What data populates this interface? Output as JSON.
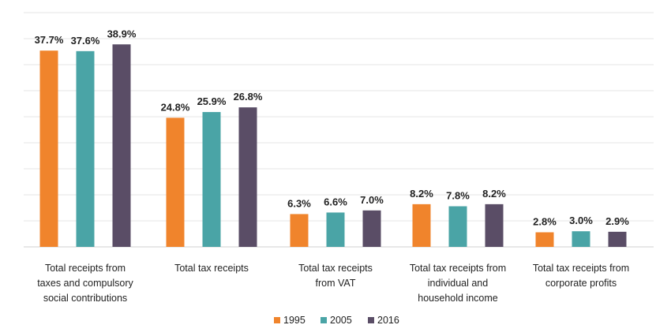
{
  "chart_data": {
    "type": "bar",
    "title": "",
    "xlabel": "",
    "ylabel": "",
    "ylim": [
      0,
      45
    ],
    "grid": true,
    "legend_position": "bottom-center",
    "categories": [
      [
        "Total receipts from",
        "taxes and compulsory",
        "social contributions"
      ],
      [
        "Total tax receipts"
      ],
      [
        "Total tax receipts",
        "from VAT"
      ],
      [
        "Total tax receipts from",
        "individual and",
        "household income"
      ],
      [
        "Total tax receipts from",
        "corporate profits"
      ]
    ],
    "series": [
      {
        "name": "1995",
        "color": "#f0842c",
        "values": [
          37.7,
          24.8,
          6.3,
          8.2,
          2.8
        ],
        "labels": [
          "37.7%",
          "24.8%",
          "6.3%",
          "8.2%",
          "2.8%"
        ]
      },
      {
        "name": "2005",
        "color": "#4aa4a6",
        "values": [
          37.6,
          25.9,
          6.6,
          7.8,
          3.0
        ],
        "labels": [
          "37.6%",
          "25.9%",
          "6.6%",
          "7.8%",
          "3.0%"
        ]
      },
      {
        "name": "2016",
        "color": "#5a4d66",
        "values": [
          38.9,
          26.8,
          7.0,
          8.2,
          2.9
        ],
        "labels": [
          "38.9%",
          "26.8%",
          "7.0%",
          "8.2%",
          "2.9%"
        ]
      }
    ]
  }
}
